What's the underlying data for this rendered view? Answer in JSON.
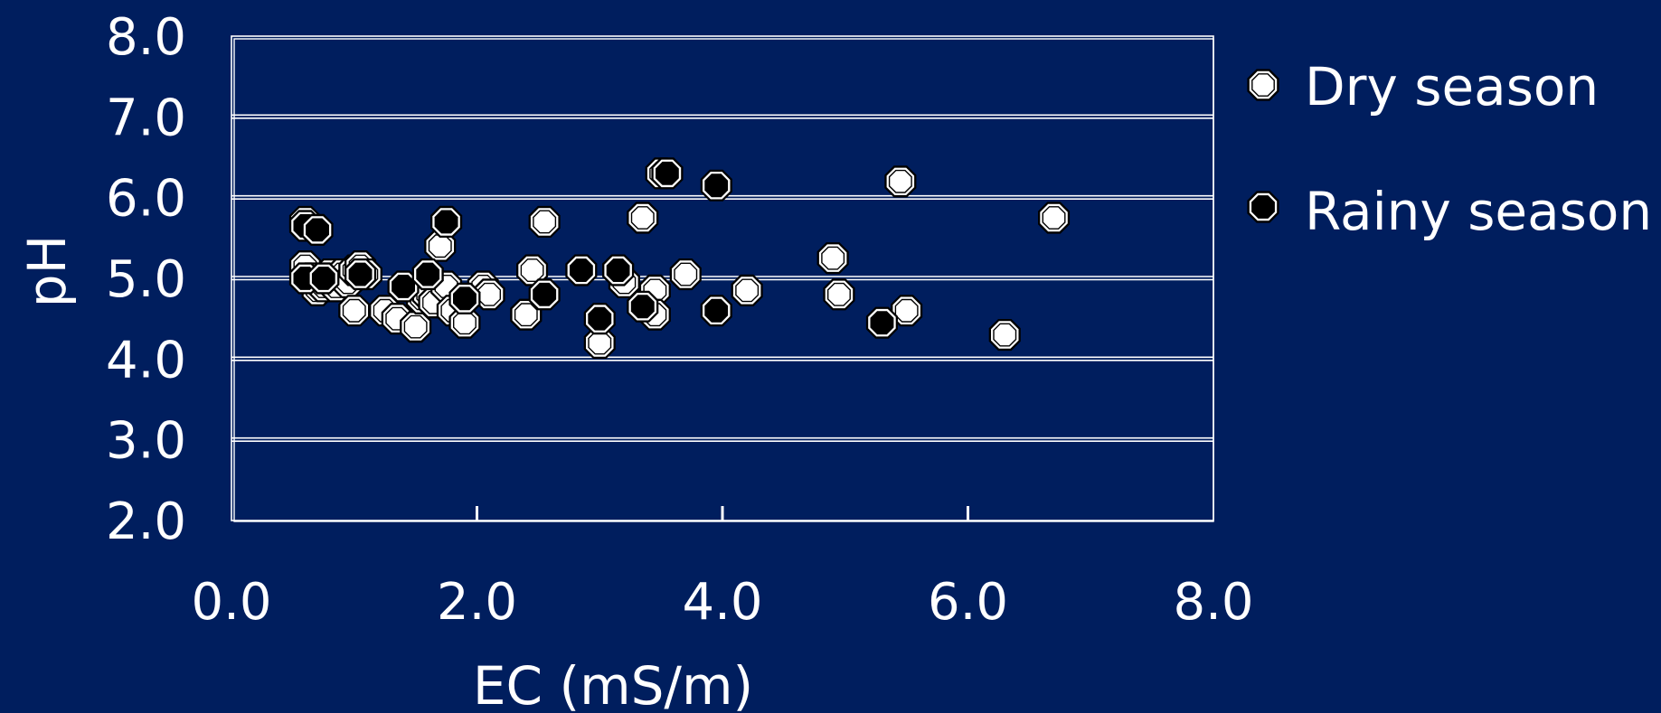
{
  "chart_data": {
    "type": "scatter",
    "title": "",
    "xlabel": "EC (mS/m)",
    "ylabel": "pH",
    "xlim": [
      0.0,
      8.0
    ],
    "ylim": [
      2.0,
      8.0
    ],
    "x_ticks": [
      "0.0",
      "2.0",
      "4.0",
      "6.0",
      "8.0"
    ],
    "y_ticks": [
      "8.0",
      "7.0",
      "6.0",
      "5.0",
      "4.0",
      "3.0",
      "2.0"
    ],
    "grid": true,
    "legend_position": "right",
    "colors": {
      "background": "#001E5E",
      "axes": "#FFFFFF",
      "dry_marker": "#FFFFFF",
      "rainy_marker": "#000000"
    },
    "series": [
      {
        "name": "Dry season",
        "marker": "white-octagon",
        "points": [
          [
            0.6,
            5.7
          ],
          [
            0.6,
            5.15
          ],
          [
            0.65,
            5.0
          ],
          [
            0.7,
            4.85
          ],
          [
            0.75,
            4.9
          ],
          [
            0.8,
            5.05
          ],
          [
            0.85,
            4.9
          ],
          [
            0.9,
            5.05
          ],
          [
            0.95,
            4.95
          ],
          [
            1.0,
            5.1
          ],
          [
            1.05,
            5.15
          ],
          [
            1.1,
            5.05
          ],
          [
            1.0,
            4.6
          ],
          [
            1.25,
            4.6
          ],
          [
            1.35,
            4.5
          ],
          [
            1.5,
            4.4
          ],
          [
            1.55,
            4.75
          ],
          [
            1.6,
            4.8
          ],
          [
            1.65,
            4.7
          ],
          [
            1.7,
            5.4
          ],
          [
            1.75,
            4.9
          ],
          [
            1.75,
            5.7
          ],
          [
            1.8,
            4.6
          ],
          [
            1.9,
            4.45
          ],
          [
            2.05,
            4.9
          ],
          [
            2.1,
            4.8
          ],
          [
            2.4,
            4.55
          ],
          [
            2.45,
            5.1
          ],
          [
            2.55,
            5.7
          ],
          [
            3.15,
            5.1
          ],
          [
            3.2,
            4.95
          ],
          [
            3.35,
            5.75
          ],
          [
            3.45,
            4.85
          ],
          [
            3.45,
            4.55
          ],
          [
            3.5,
            6.3
          ],
          [
            3.7,
            5.05
          ],
          [
            3.0,
            4.2
          ],
          [
            4.2,
            4.85
          ],
          [
            4.9,
            5.25
          ],
          [
            4.95,
            4.8
          ],
          [
            5.45,
            6.2
          ],
          [
            5.5,
            4.6
          ],
          [
            6.3,
            4.3
          ],
          [
            6.7,
            5.75
          ]
        ]
      },
      {
        "name": "Rainy season",
        "marker": "black-octagon",
        "points": [
          [
            0.6,
            5.65
          ],
          [
            0.6,
            5.0
          ],
          [
            0.7,
            5.6
          ],
          [
            0.75,
            5.0
          ],
          [
            1.05,
            5.05
          ],
          [
            1.4,
            4.9
          ],
          [
            1.6,
            5.05
          ],
          [
            1.75,
            5.7
          ],
          [
            1.9,
            4.75
          ],
          [
            2.55,
            4.8
          ],
          [
            2.85,
            5.1
          ],
          [
            3.0,
            4.5
          ],
          [
            3.15,
            5.1
          ],
          [
            3.35,
            4.65
          ],
          [
            3.55,
            6.3
          ],
          [
            3.95,
            6.15
          ],
          [
            3.95,
            4.6
          ],
          [
            5.3,
            4.45
          ]
        ]
      }
    ]
  }
}
